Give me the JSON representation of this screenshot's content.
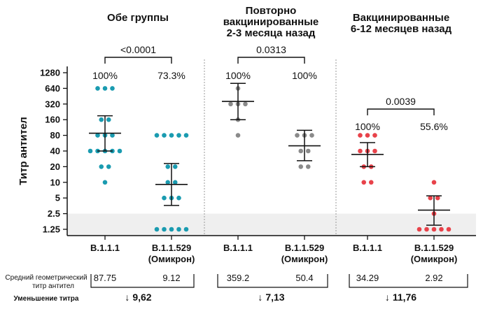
{
  "chart_data": {
    "type": "scatter",
    "ylabel": "Титр антител",
    "y_scale": "log2",
    "ylim": [
      0.9,
      1600
    ],
    "yticks": [
      "1.25",
      "2.5",
      "5",
      "10",
      "20",
      "40",
      "80",
      "160",
      "320",
      "640",
      "1280"
    ],
    "ytick_values": [
      1.25,
      2.5,
      5,
      10,
      20,
      40,
      80,
      160,
      320,
      640,
      1280
    ],
    "threshold_band": [
      0.9,
      2.5
    ],
    "row_labels": {
      "gmt": "Средний геометрический титр антител",
      "gmt_line1": "Средний геометрический",
      "gmt_line2": "титр антител",
      "reduction": "Уменьшение титра"
    },
    "panels": [
      {
        "title": "Обе группы",
        "title_lines": [
          "Обе группы"
        ],
        "p_value": "<0.0001",
        "groups": [
          {
            "name": "B.1.1.1",
            "name_lines": [
              "B.1.1.1"
            ],
            "color": "#1a9bb0",
            "percent": "100%",
            "gmt_value": 87.75,
            "gmt_label": "87.75",
            "ci": [
              40,
              190
            ],
            "points": [
              640,
              640,
              640,
              160,
              160,
              80,
              80,
              80,
              40,
              40,
              40,
              40,
              40,
              20,
              20,
              10
            ]
          },
          {
            "name": "B.1.1.529 (Омикрон)",
            "name_lines": [
              "B.1.1.529",
              "(Омикрон)"
            ],
            "color": "#1a9bb0",
            "percent": "73.3%",
            "gmt_value": 9.12,
            "gmt_label": "9.12",
            "ci": [
              3.6,
              23
            ],
            "points": [
              80,
              80,
              80,
              80,
              80,
              20,
              20,
              10,
              10,
              5,
              5,
              5,
              1.25,
              1.25,
              1.25,
              1.25,
              1.25
            ]
          }
        ],
        "reduction": "9,62"
      },
      {
        "title": "Повторно вакцинированные 2-3 месяца назад",
        "title_lines": [
          "Повторно",
          "вакцинированные",
          "2-3 месяца назад"
        ],
        "p_value": "0.0313",
        "groups": [
          {
            "name": "B.1.1.1",
            "name_lines": [
              "B.1.1.1"
            ],
            "color": "#8a8a8a",
            "percent": "100%",
            "gmt_value": 359.2,
            "gmt_label": "359.2",
            "ci": [
              160,
              800
            ],
            "points": [
              640,
              320,
              320,
              320,
              160,
              80
            ]
          },
          {
            "name": "B.1.1.529 (Омикрон)",
            "name_lines": [
              "B.1.1.529",
              "(Омикрон)"
            ],
            "color": "#8a8a8a",
            "percent": "100%",
            "gmt_value": 50.4,
            "gmt_label": "50.4",
            "ci": [
              26,
              100
            ],
            "points": [
              80,
              80,
              80,
              40,
              40,
              20,
              20
            ]
          }
        ],
        "reduction": "7,13"
      },
      {
        "title": "Вакцинированные 6-12 месяцев назад",
        "title_lines": [
          "Вакцинированные",
          "6-12 месяцев назад"
        ],
        "p_value": "0.0039",
        "groups": [
          {
            "name": "B.1.1.1",
            "name_lines": [
              "B.1.1.1"
            ],
            "color": "#e8424a",
            "percent": "100%",
            "gmt_value": 34.29,
            "gmt_label": "34.29",
            "ci": [
              20,
              58
            ],
            "points": [
              80,
              80,
              80,
              40,
              40,
              40,
              20,
              20,
              10,
              10
            ]
          },
          {
            "name": "B.1.1.529 (Омикрон)",
            "name_lines": [
              "B.1.1.529",
              "(Омикрон)"
            ],
            "color": "#e8424a",
            "percent": "55.6%",
            "gmt_value": 2.92,
            "gmt_label": "2.92",
            "ci": [
              1.5,
              5.5
            ],
            "points": [
              10,
              5,
              5,
              2.5,
              1.25,
              1.25,
              1.25,
              1.25,
              1.25
            ]
          }
        ],
        "reduction": "11,76"
      }
    ]
  }
}
